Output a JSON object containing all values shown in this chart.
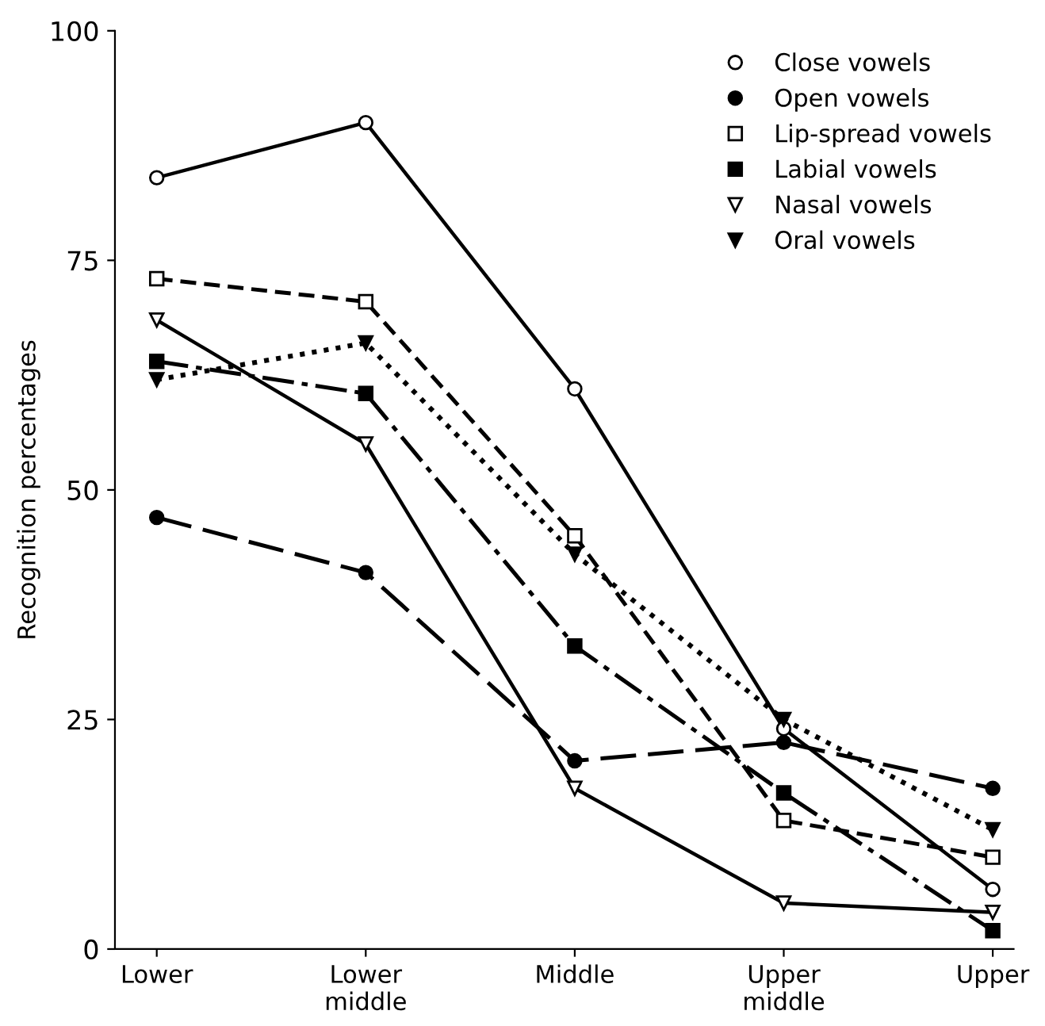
{
  "chart_data": {
    "type": "line",
    "ylabel": "Recognition percentages",
    "categories": [
      "Lower",
      "Lower\nmiddle",
      "Middle",
      "Upper\nmiddle",
      "Upper"
    ],
    "ylim": [
      0,
      100
    ],
    "yticks": [
      0,
      25,
      50,
      75,
      100
    ],
    "grid": false,
    "legend": "top right",
    "series": [
      {
        "name": "Close vowels",
        "color": "#000000",
        "marker": "circle-open",
        "line_style": "solid",
        "values": [
          84,
          90,
          61,
          24,
          6.5
        ]
      },
      {
        "name": "Open vowels",
        "color": "#000000",
        "marker": "circle",
        "line_style": "longdashed",
        "values": [
          47,
          41,
          20.5,
          22.5,
          17.5
        ]
      },
      {
        "name": "Lip-spread vowels",
        "color": "#000000",
        "marker": "square-open",
        "line_style": "dashed",
        "values": [
          73,
          70.5,
          45,
          14,
          10
        ]
      },
      {
        "name": "Labial vowels",
        "color": "#000000",
        "marker": "square",
        "line_style": "dashdot",
        "values": [
          64,
          60.5,
          33,
          17,
          2
        ]
      },
      {
        "name": "Nasal vowels",
        "color": "#000000",
        "marker": "triangle-open",
        "line_style": "solid",
        "values": [
          68.5,
          55,
          17.5,
          5,
          4
        ]
      },
      {
        "name": "Oral vowels",
        "color": "#000000",
        "marker": "triangle",
        "line_style": "dotted",
        "values": [
          62,
          66,
          43,
          25,
          13
        ]
      }
    ]
  }
}
